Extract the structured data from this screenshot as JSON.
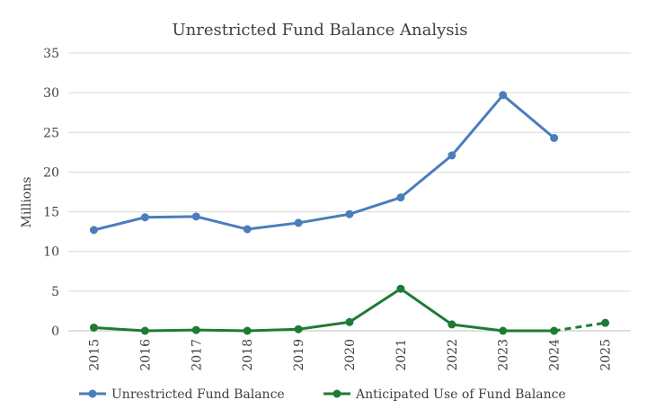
{
  "chart_data": {
    "type": "line",
    "title": "Unrestricted Fund Balance Analysis",
    "xlabel": "",
    "ylabel": "Millions",
    "ylim": [
      0,
      35
    ],
    "yticks": [
      "0",
      "5",
      "10",
      "15",
      "20",
      "25",
      "30",
      "35"
    ],
    "categories": [
      "2015",
      "2016",
      "2017",
      "2018",
      "2019",
      "2020",
      "2021",
      "2022",
      "2023",
      "2024",
      "2025"
    ],
    "grid": true,
    "legend_position": "bottom",
    "series": [
      {
        "name": "Unrestricted Fund Balance",
        "color": "#4a7ebb",
        "values": [
          12.7,
          14.3,
          14.4,
          12.8,
          13.6,
          14.7,
          16.8,
          22.1,
          29.7,
          24.3,
          null
        ]
      },
      {
        "name": "Anticipated Use of Fund Balance",
        "color": "#1e7b34",
        "values": [
          0.4,
          0.0,
          0.1,
          0.0,
          0.2,
          1.1,
          5.3,
          0.8,
          0.0,
          0.0,
          1.0
        ],
        "dashed_from_index": 9
      }
    ]
  }
}
